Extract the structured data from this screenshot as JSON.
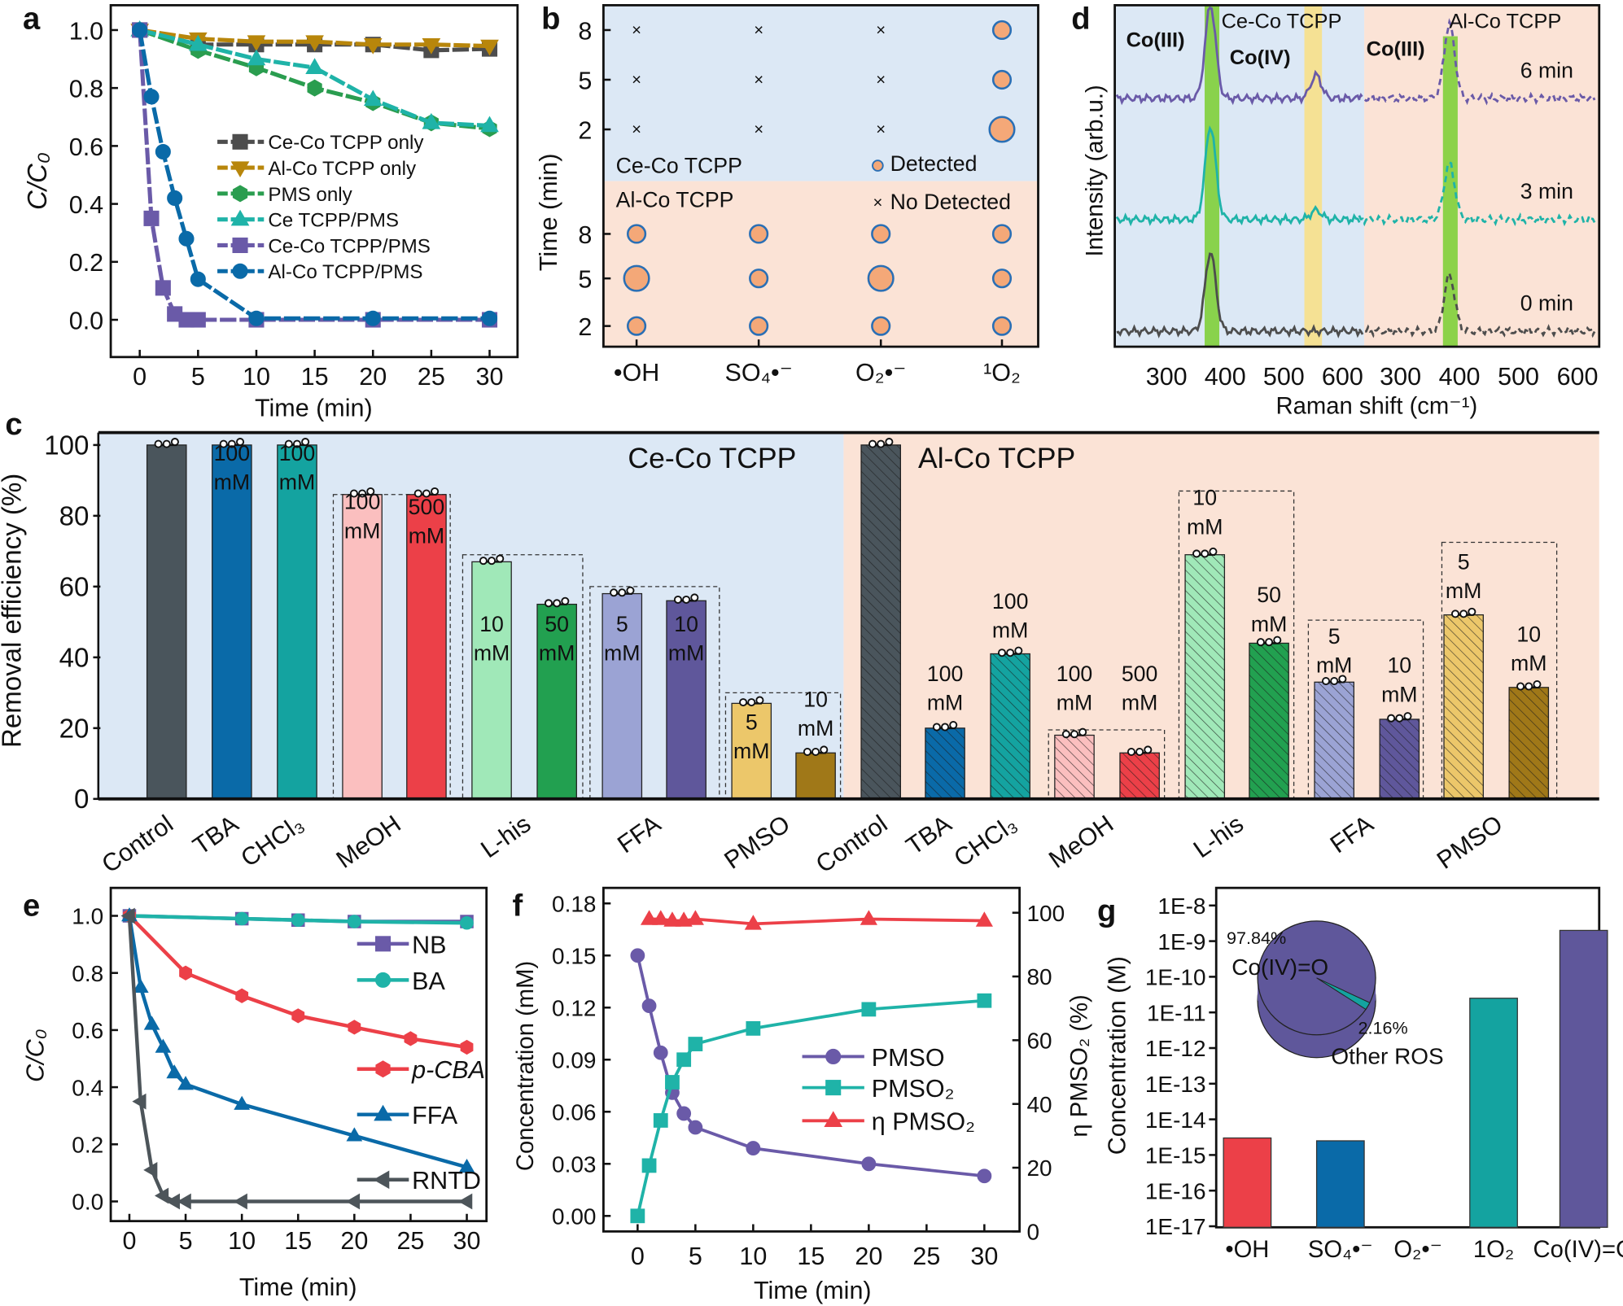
{
  "panels": {
    "a": {
      "label": "a"
    },
    "b": {
      "label": "b"
    },
    "c": {
      "label": "c"
    },
    "d": {
      "label": "d"
    },
    "e": {
      "label": "e"
    },
    "f": {
      "label": "f"
    },
    "g": {
      "label": "g"
    }
  },
  "chart_data": [
    {
      "panel": "a",
      "type": "line",
      "xlabel": "Time (min)",
      "ylabel": "C/C₀",
      "xlim": [
        -2.5,
        32.5
      ],
      "ylim": [
        -0.08,
        1.08
      ],
      "xticks": [
        0,
        5,
        10,
        15,
        20,
        25,
        30
      ],
      "yticks": [
        0.0,
        0.2,
        0.4,
        0.6,
        0.8,
        1.0
      ],
      "legend": "center-right",
      "series": [
        {
          "name": "Ce-Co TCPP only",
          "color": "#4d4d4d",
          "marker": "square",
          "x": [
            0,
            5,
            10,
            15,
            20,
            25,
            30
          ],
          "y": [
            1.0,
            0.95,
            0.95,
            0.95,
            0.95,
            0.93,
            0.935
          ]
        },
        {
          "name": "Al-Co TCPP only",
          "color": "#b8860b",
          "marker": "triangle-down",
          "x": [
            0,
            5,
            10,
            15,
            20,
            25,
            30
          ],
          "y": [
            1.0,
            0.97,
            0.96,
            0.96,
            0.95,
            0.95,
            0.945
          ]
        },
        {
          "name": "PMS only",
          "color": "#2a9d4f",
          "marker": "hexagon",
          "x": [
            0,
            5,
            10,
            15,
            20,
            25,
            30
          ],
          "y": [
            1.0,
            0.93,
            0.87,
            0.8,
            0.75,
            0.68,
            0.66
          ]
        },
        {
          "name": "Ce TCPP/PMS",
          "color": "#1fb3a8",
          "marker": "triangle-up",
          "x": [
            0,
            5,
            10,
            15,
            20,
            25,
            30
          ],
          "y": [
            1.0,
            0.95,
            0.9,
            0.87,
            0.76,
            0.68,
            0.67
          ]
        },
        {
          "name": "Ce-Co TCPP/PMS",
          "color": "#6a5aa8",
          "marker": "square",
          "x": [
            0,
            1,
            2,
            3,
            4,
            5,
            10,
            20,
            30
          ],
          "y": [
            1.0,
            0.35,
            0.11,
            0.02,
            0.0,
            0.0,
            0.0,
            0.0,
            0.0
          ]
        },
        {
          "name": "Al-Co TCPP/PMS",
          "color": "#0a6aa8",
          "marker": "circle",
          "x": [
            0,
            1,
            2,
            3,
            4,
            5,
            10,
            20,
            30
          ],
          "y": [
            1.0,
            0.77,
            0.58,
            0.42,
            0.28,
            0.14,
            0.005,
            0.005,
            0.005
          ]
        }
      ]
    },
    {
      "panel": "b",
      "type": "scatter",
      "ylabel": "Time (min)",
      "categories": [
        "•OH",
        "SO₄•⁻",
        "O₂•⁻",
        "¹O₂"
      ],
      "yticks": [
        8,
        5,
        2
      ],
      "groups": [
        {
          "name": "Ce-Co TCPP",
          "color": "#4a90d9",
          "background": "#dce8f5",
          "detected": {
            "8": [
              0,
              0,
              0,
              1
            ],
            "5": [
              0,
              0,
              0,
              1
            ],
            "2": [
              0,
              0,
              0,
              2
            ]
          }
        },
        {
          "name": "Al-Co TCPP",
          "color": "#d2691e",
          "background": "#fbe3d6",
          "detected": {
            "8": [
              1,
              1,
              1,
              1
            ],
            "5": [
              2,
              1,
              2,
              1
            ],
            "2": [
              1,
              1,
              1,
              1
            ]
          }
        }
      ],
      "legend": {
        "detected": "Detected",
        "not_detected": "No Detected"
      },
      "marker_color": "#f4a878",
      "marker_edge": "#2a6fb5",
      "cross_color": "#2a6fb5"
    },
    {
      "panel": "d",
      "type": "line",
      "xlabel": "Raman shift (cm⁻¹)",
      "ylabel": "Intensity (arb.u.)",
      "xticks_left": [
        300,
        400,
        500,
        600
      ],
      "xticks_right": [
        300,
        400,
        500,
        600
      ],
      "xlim": [
        220,
        630
      ],
      "groups": [
        {
          "name": "Ce-Co TCPP",
          "color": "#4a90d9",
          "background": "#dce8f5",
          "bands": [
            {
              "label": "Co(III)",
              "range": [
                365,
                390
              ],
              "color": "#7fcf3a"
            },
            {
              "label": "Co(IV)",
              "range": [
                535,
                565
              ],
              "color": "#f7e08a"
            }
          ]
        },
        {
          "name": "Al-Co TCPP",
          "color": "#d2691e",
          "background": "#fbe3d6",
          "bands": [
            {
              "label": "Co(III)",
              "range": [
                372,
                397
              ],
              "color": "#7fcf3a"
            }
          ]
        }
      ],
      "series": [
        {
          "name": "6 min",
          "color": "#6a5aa8",
          "left_peaks": [
            [
              375,
              1.0
            ],
            [
              555,
              0.25
            ]
          ],
          "right_peaks": [
            [
              383,
              0.8
            ]
          ]
        },
        {
          "name": "3 min",
          "color": "#1fb3a8",
          "left_peaks": [
            [
              375,
              1.0
            ],
            [
              555,
              0.1
            ]
          ],
          "right_peaks": [
            [
              383,
              0.6
            ]
          ]
        },
        {
          "name": "0 min",
          "color": "#4d4d4d",
          "left_peaks": [
            [
              375,
              0.85
            ]
          ],
          "right_peaks": [
            [
              383,
              0.6
            ]
          ]
        }
      ]
    },
    {
      "panel": "c",
      "type": "bar",
      "ylabel": "Removal efficiency (%)",
      "ylim": [
        0,
        100
      ],
      "yticks": [
        0,
        20,
        40,
        60,
        80,
        100
      ],
      "groups": [
        {
          "name": "Ce-Co TCPP",
          "color": "#4a90d9",
          "background": "#dce8f5",
          "hatched": false,
          "categories": [
            "Control",
            "TBA",
            "CHCl₃",
            "MeOH",
            "L-his",
            "FFA",
            "PMSO"
          ],
          "bars": [
            {
              "category": "Control",
              "value": 100,
              "annotation": "",
              "color": "#4a555c"
            },
            {
              "category": "TBA",
              "value": 100,
              "annotation": "100 mM",
              "color": "#0a6aa8"
            },
            {
              "category": "CHCl₃",
              "value": 100,
              "annotation": "100 mM",
              "color": "#14a3a0"
            },
            {
              "category": "MeOH",
              "value": 86,
              "annotation": "100 mM",
              "color": "#fbbfbf"
            },
            {
              "category": "MeOH",
              "value": 86,
              "annotation": "500 mM",
              "color": "#ec4048"
            },
            {
              "category": "L-his",
              "value": 67,
              "annotation": "10 mM",
              "color": "#a0e8b8"
            },
            {
              "category": "L-his",
              "value": 55,
              "annotation": "50 mM",
              "color": "#22a050"
            },
            {
              "category": "FFA",
              "value": 58,
              "annotation": "5 mM",
              "color": "#9ba3d4"
            },
            {
              "category": "FFA",
              "value": 56,
              "annotation": "10 mM",
              "color": "#5f579b"
            },
            {
              "category": "PMSO",
              "value": 27,
              "annotation": "5 mM",
              "color": "#ecc76a"
            },
            {
              "category": "PMSO",
              "value": 13,
              "annotation": "10 mM",
              "color": "#a07818"
            }
          ]
        },
        {
          "name": "Al-Co TCPP",
          "color": "#d2691e",
          "background": "#fbe3d6",
          "hatched": true,
          "categories": [
            "Control",
            "TBA",
            "CHCl₃",
            "MeOH",
            "L-his",
            "FFA",
            "PMSO"
          ],
          "bars": [
            {
              "category": "Control",
              "value": 100,
              "annotation": "",
              "color": "#4a555c"
            },
            {
              "category": "TBA",
              "value": 20,
              "annotation": "100 mM",
              "color": "#0a6aa8"
            },
            {
              "category": "CHCl₃",
              "value": 41,
              "annotation": "100 mM",
              "color": "#14a3a0"
            },
            {
              "category": "MeOH",
              "value": 18,
              "annotation": "100 mM",
              "color": "#fbbfbf"
            },
            {
              "category": "MeOH",
              "value": 13,
              "annotation": "500 mM",
              "color": "#ec4048"
            },
            {
              "category": "L-his",
              "value": 69,
              "annotation": "10 mM",
              "color": "#a0e8b8"
            },
            {
              "category": "L-his",
              "value": 44,
              "annotation": "50 mM",
              "color": "#22a050"
            },
            {
              "category": "FFA",
              "value": 33,
              "annotation": "5 mM",
              "color": "#9ba3d4"
            },
            {
              "category": "FFA",
              "value": 22.5,
              "annotation": "10 mM",
              "color": "#5f579b"
            },
            {
              "category": "PMSO",
              "value": 52,
              "annotation": "5 mM",
              "color": "#ecc76a"
            },
            {
              "category": "PMSO",
              "value": 31.5,
              "annotation": "10 mM",
              "color": "#a07818"
            }
          ]
        }
      ]
    },
    {
      "panel": "e",
      "type": "line",
      "xlabel": "Time (min)",
      "ylabel": "C/C₀",
      "xlim": [
        -1.5,
        32
      ],
      "ylim": [
        -0.1,
        1.08
      ],
      "xticks": [
        0,
        5,
        10,
        15,
        20,
        25,
        30
      ],
      "yticks": [
        0.0,
        0.2,
        0.4,
        0.6,
        0.8,
        1.0
      ],
      "series": [
        {
          "name": "NB",
          "color": "#6a5aa8",
          "marker": "square",
          "x": [
            0,
            10,
            15,
            20,
            30
          ],
          "y": [
            1.0,
            0.99,
            0.985,
            0.98,
            0.98
          ]
        },
        {
          "name": "BA",
          "color": "#1fb3a8",
          "marker": "circle",
          "x": [
            0,
            10,
            15,
            20,
            30
          ],
          "y": [
            1.0,
            0.99,
            0.985,
            0.98,
            0.975
          ]
        },
        {
          "name": "p-CBA",
          "color": "#ec4048",
          "marker": "hexagon",
          "x": [
            0,
            5,
            10,
            15,
            20,
            25,
            30
          ],
          "y": [
            1.0,
            0.8,
            0.72,
            0.65,
            0.61,
            0.57,
            0.54
          ]
        },
        {
          "name": "FFA",
          "color": "#0a6aa8",
          "marker": "triangle-up",
          "x": [
            0,
            1,
            2,
            3,
            4,
            5,
            10,
            20,
            30
          ],
          "y": [
            1.0,
            0.75,
            0.62,
            0.54,
            0.45,
            0.41,
            0.34,
            0.23,
            0.12
          ]
        },
        {
          "name": "RNTD",
          "color": "#4d555a",
          "marker": "triangle-left",
          "x": [
            0,
            1,
            2,
            3,
            4,
            5,
            10,
            20,
            30
          ],
          "y": [
            1.0,
            0.35,
            0.11,
            0.02,
            0.0,
            0.0,
            0.0,
            0.0,
            0.0
          ]
        }
      ]
    },
    {
      "panel": "f",
      "type": "line",
      "xlabel": "Time (min)",
      "ylabel": "Concentration (mM)",
      "y2label": "η PMSO₂ (%)",
      "xlim": [
        -2.5,
        32.5
      ],
      "ylim": [
        -0.009,
        0.18
      ],
      "y2lim": [
        0,
        100
      ],
      "xticks": [
        0,
        5,
        10,
        15,
        20,
        25,
        30
      ],
      "yticks": [
        "0.00",
        "0.03",
        "0.06",
        "0.09",
        "0.12",
        "0.15",
        "0.18"
      ],
      "y2ticks": [
        0,
        20,
        40,
        60,
        80,
        100
      ],
      "series": [
        {
          "name": "PMSO",
          "axis": "left",
          "color": "#6a5aa8",
          "marker": "circle",
          "x": [
            0,
            1,
            2,
            3,
            4,
            5,
            10,
            20,
            30
          ],
          "y": [
            0.15,
            0.121,
            0.094,
            0.071,
            0.059,
            0.051,
            0.039,
            0.03,
            0.023
          ]
        },
        {
          "name": "PMSO₂",
          "axis": "left",
          "color": "#1fb3a8",
          "marker": "square",
          "x": [
            0,
            1,
            2,
            3,
            4,
            5,
            10,
            20,
            30
          ],
          "y": [
            0.0,
            0.029,
            0.055,
            0.077,
            0.09,
            0.099,
            0.108,
            0.119,
            0.124
          ]
        },
        {
          "name": "η PMSO₂",
          "axis": "right",
          "color": "#ec4048",
          "marker": "triangle-up",
          "x": [
            1,
            2,
            3,
            4,
            5,
            10,
            20,
            30
          ],
          "y": [
            98,
            98,
            97.5,
            97.5,
            98,
            96.5,
            98,
            97.5
          ]
        }
      ]
    },
    {
      "panel": "g",
      "type": "bar",
      "ylabel": "Concentration (M)",
      "yscale": "log",
      "yticks": [
        "1E-8",
        "1E-9",
        "1E-10",
        "1E-11",
        "1E-12",
        "1E-13",
        "1E-14",
        "1E-15",
        "1E-16",
        "1E-17"
      ],
      "categories": [
        "•OH",
        "SO₄•⁻",
        "O₂•⁻",
        "1O₂",
        "Co(IV)=O"
      ],
      "values": [
        3e-15,
        2.5e-15,
        null,
        2.5e-11,
        2e-09
      ],
      "colors": [
        "#ec4048",
        "#0a6aa8",
        "#ffffff",
        "#14a3a0",
        "#5f579b"
      ],
      "inset_pie": {
        "slices": [
          {
            "label": "Co(IV)=O",
            "value": 97.84,
            "text": "97.84%",
            "color": "#5f579b"
          },
          {
            "label": "Other ROS",
            "value": 2.16,
            "text": "2.16%",
            "color": "#14a3a0"
          }
        ]
      }
    }
  ]
}
